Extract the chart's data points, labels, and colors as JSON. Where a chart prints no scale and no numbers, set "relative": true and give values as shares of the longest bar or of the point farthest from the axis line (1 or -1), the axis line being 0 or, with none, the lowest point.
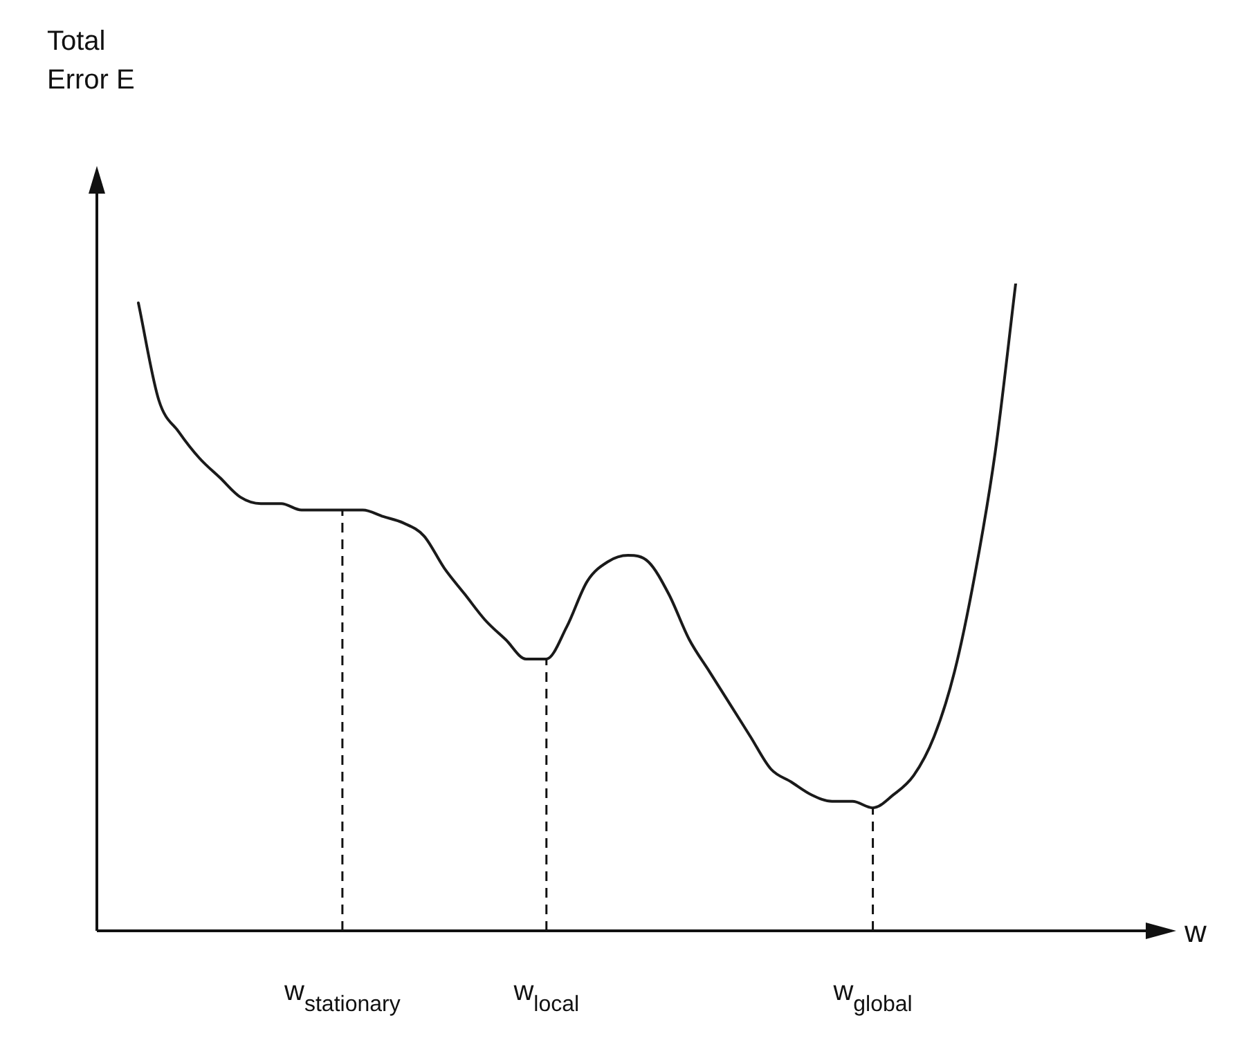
{
  "chart_data": {
    "type": "line",
    "relative": true,
    "annotations": [
      "Total\nError E",
      "w"
    ],
    "categories": [
      null,
      null,
      null,
      null,
      null,
      null,
      null,
      null,
      null,
      null,
      "w$_{stationary}$",
      null,
      null,
      null,
      null,
      null,
      null,
      null,
      null,
      null,
      "w$_{local}$",
      null,
      null,
      null,
      null,
      null,
      null,
      null,
      null,
      null,
      null,
      null,
      null,
      null,
      null,
      null,
      "w$_{global}$",
      null,
      null,
      null,
      null,
      null,
      null,
      null
    ],
    "series": [
      {
        "color": "#1a1a1a",
        "values": [
          0.97,
          0.82,
          0.77,
          0.73,
          0.7,
          0.67,
          0.66,
          0.66,
          0.65,
          0.65,
          0.65,
          0.65,
          0.64,
          0.63,
          0.61,
          0.56,
          0.52,
          0.48,
          0.45,
          0.42,
          0.42,
          0.47,
          0.54,
          0.57,
          0.58,
          0.57,
          0.52,
          0.45,
          0.4,
          0.35,
          0.3,
          0.25,
          0.23,
          0.21,
          0.2,
          0.2,
          0.19,
          0.21,
          0.24,
          0.3,
          0.4,
          0.55,
          0.74,
          1
        ]
      }
    ],
    "ref_lines": [
      {
        "axis": "x",
        "value": "w$_{stationary}$",
        "line_style": "dashed"
      },
      {
        "axis": "x",
        "value": "w$_{local}$",
        "line_style": "dashed"
      },
      {
        "axis": "x",
        "value": "w$_{global}$",
        "line_style": "dashed"
      }
    ],
    "grid": false,
    "legend": false,
    "marker": "none",
    "line_style": "solid"
  }
}
